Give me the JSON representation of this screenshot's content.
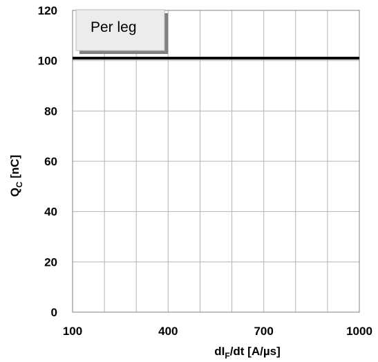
{
  "chart_data": {
    "type": "line",
    "title": "",
    "xlabel": {
      "main": "dI",
      "sub": "F",
      "rest": "/dt [A/µs]"
    },
    "ylabel": {
      "main": "Q",
      "sub": "C",
      "rest": " [nC]"
    },
    "xlim": [
      100,
      1000
    ],
    "ylim": [
      0,
      120
    ],
    "x_ticks": [
      100,
      400,
      700,
      1000
    ],
    "y_ticks": [
      0,
      20,
      40,
      60,
      80,
      100,
      120
    ],
    "x_grid": [
      100,
      200,
      300,
      400,
      500,
      600,
      700,
      800,
      900,
      1000
    ],
    "grid": true,
    "legend": {
      "text": "Per leg",
      "placement": "top-left"
    },
    "series": [
      {
        "x": [
          100,
          1000
        ],
        "y": [
          101,
          101
        ],
        "color": "#000000"
      }
    ]
  }
}
